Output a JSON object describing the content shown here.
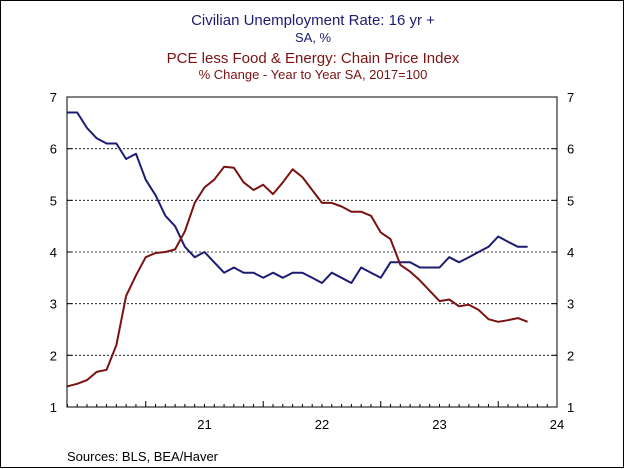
{
  "chart_data": {
    "type": "line",
    "titles": [
      {
        "text": "Civilian Unemployment Rate: 16 yr +",
        "color": "#1c1c72"
      },
      {
        "text": "SA, %",
        "color": "#1c1c72"
      },
      {
        "text": "PCE less Food & Energy: Chain Price Index",
        "color": "#7a1212"
      },
      {
        "text": "% Change - Year to Year   SA, 2017=100",
        "color": "#7a1212"
      }
    ],
    "ylim": [
      1,
      7
    ],
    "y_ticks": [
      1,
      2,
      3,
      4,
      5,
      6,
      7
    ],
    "y_tick_labels": [
      "1",
      "2",
      "3",
      "4",
      "5",
      "6",
      "7"
    ],
    "x_tick_labels": [
      "21",
      "22",
      "23",
      "24"
    ],
    "x_tick_positions": [
      2021,
      2022,
      2023,
      2024
    ],
    "grid": "horizontal",
    "x_range": [
      2020.33,
      2024.5
    ],
    "series": [
      {
        "color": "#1c1c72",
        "points": [
          [
            2020.333,
            6.7
          ],
          [
            2020.417,
            6.7
          ],
          [
            2020.5,
            6.4
          ],
          [
            2020.583,
            6.2
          ],
          [
            2020.667,
            6.1
          ],
          [
            2020.75,
            6.1
          ],
          [
            2020.833,
            5.8
          ],
          [
            2020.917,
            5.9
          ],
          [
            2021.0,
            5.4
          ],
          [
            2021.083,
            5.1
          ],
          [
            2021.167,
            4.7
          ],
          [
            2021.25,
            4.5
          ],
          [
            2021.333,
            4.1
          ],
          [
            2021.417,
            3.9
          ],
          [
            2021.5,
            4.0
          ],
          [
            2021.583,
            3.8
          ],
          [
            2021.667,
            3.6
          ],
          [
            2021.75,
            3.7
          ],
          [
            2021.833,
            3.6
          ],
          [
            2021.917,
            3.6
          ],
          [
            2022.0,
            3.5
          ],
          [
            2022.083,
            3.6
          ],
          [
            2022.167,
            3.5
          ],
          [
            2022.25,
            3.6
          ],
          [
            2022.333,
            3.6
          ],
          [
            2022.417,
            3.5
          ],
          [
            2022.5,
            3.4
          ],
          [
            2022.583,
            3.6
          ],
          [
            2022.667,
            3.5
          ],
          [
            2022.75,
            3.4
          ],
          [
            2022.833,
            3.7
          ],
          [
            2022.917,
            3.6
          ],
          [
            2023.0,
            3.5
          ],
          [
            2023.083,
            3.8
          ],
          [
            2023.167,
            3.8
          ],
          [
            2023.25,
            3.8
          ],
          [
            2023.333,
            3.7
          ],
          [
            2023.417,
            3.7
          ],
          [
            2023.5,
            3.7
          ],
          [
            2023.583,
            3.9
          ],
          [
            2023.667,
            3.8
          ],
          [
            2023.75,
            3.9
          ],
          [
            2023.833,
            4.0
          ],
          [
            2023.917,
            4.1
          ],
          [
            2024.0,
            4.3
          ],
          [
            2024.083,
            4.2
          ],
          [
            2024.167,
            4.1
          ],
          [
            2024.25,
            4.1
          ]
        ]
      },
      {
        "color": "#7a1212",
        "points": [
          [
            2020.333,
            1.4
          ],
          [
            2020.417,
            1.45
          ],
          [
            2020.5,
            1.52
          ],
          [
            2020.583,
            1.68
          ],
          [
            2020.667,
            1.72
          ],
          [
            2020.75,
            2.2
          ],
          [
            2020.833,
            3.15
          ],
          [
            2020.917,
            3.55
          ],
          [
            2021.0,
            3.9
          ],
          [
            2021.083,
            3.98
          ],
          [
            2021.167,
            4.0
          ],
          [
            2021.25,
            4.05
          ],
          [
            2021.333,
            4.4
          ],
          [
            2021.417,
            4.95
          ],
          [
            2021.5,
            5.25
          ],
          [
            2021.583,
            5.4
          ],
          [
            2021.667,
            5.65
          ],
          [
            2021.75,
            5.63
          ],
          [
            2021.833,
            5.35
          ],
          [
            2021.917,
            5.2
          ],
          [
            2022.0,
            5.3
          ],
          [
            2022.083,
            5.12
          ],
          [
            2022.167,
            5.35
          ],
          [
            2022.25,
            5.6
          ],
          [
            2022.333,
            5.45
          ],
          [
            2022.417,
            5.2
          ],
          [
            2022.5,
            4.95
          ],
          [
            2022.583,
            4.95
          ],
          [
            2022.667,
            4.88
          ],
          [
            2022.75,
            4.78
          ],
          [
            2022.833,
            4.78
          ],
          [
            2022.917,
            4.7
          ],
          [
            2023.0,
            4.38
          ],
          [
            2023.083,
            4.25
          ],
          [
            2023.167,
            3.75
          ],
          [
            2023.25,
            3.62
          ],
          [
            2023.333,
            3.45
          ],
          [
            2023.417,
            3.25
          ],
          [
            2023.5,
            3.05
          ],
          [
            2023.583,
            3.08
          ],
          [
            2023.667,
            2.95
          ],
          [
            2023.75,
            2.98
          ],
          [
            2023.833,
            2.88
          ],
          [
            2023.917,
            2.7
          ],
          [
            2024.0,
            2.65
          ],
          [
            2024.083,
            2.68
          ],
          [
            2024.167,
            2.72
          ],
          [
            2024.25,
            2.65
          ]
        ]
      }
    ]
  },
  "footer": {
    "source": "Sources:  BLS, BEA/Haver"
  }
}
